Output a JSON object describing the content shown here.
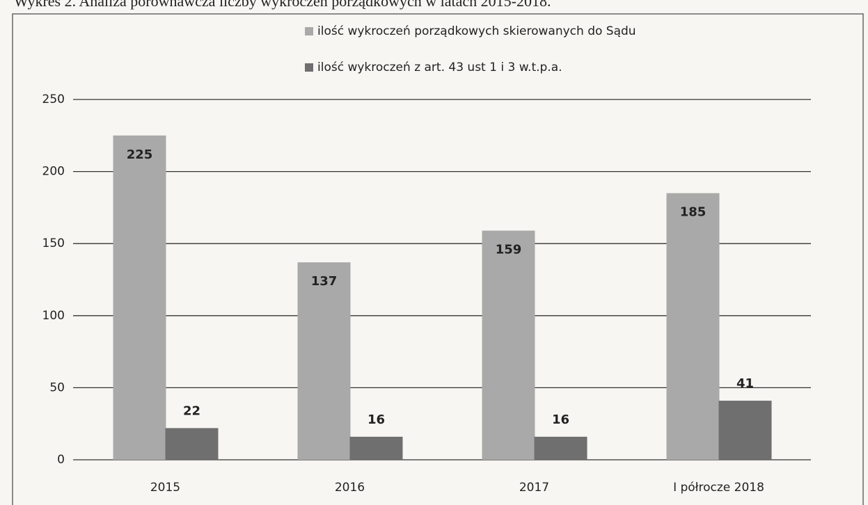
{
  "chart_data": {
    "type": "bar",
    "title": "Wykres 2. Analiza porównawcza liczby wykroczeń porządkowych w latach 2015-2018.",
    "categories": [
      "2015",
      "2016",
      "2017",
      "I półrocze 2018"
    ],
    "series": [
      {
        "name": "ilość wykroczeń porządkowych skierowanych do Sądu",
        "color": "#a9a9a9",
        "values": [
          225,
          137,
          159,
          185
        ]
      },
      {
        "name": "ilość wykroczeń z art. 43 ust 1 i 3 w.t.p.a.",
        "color": "#6f6f6f",
        "values": [
          22,
          16,
          16,
          41
        ]
      }
    ],
    "ylim": [
      0,
      250
    ],
    "yticks": [
      0,
      50,
      100,
      150,
      200,
      250
    ],
    "grid": true,
    "legend": "top"
  }
}
